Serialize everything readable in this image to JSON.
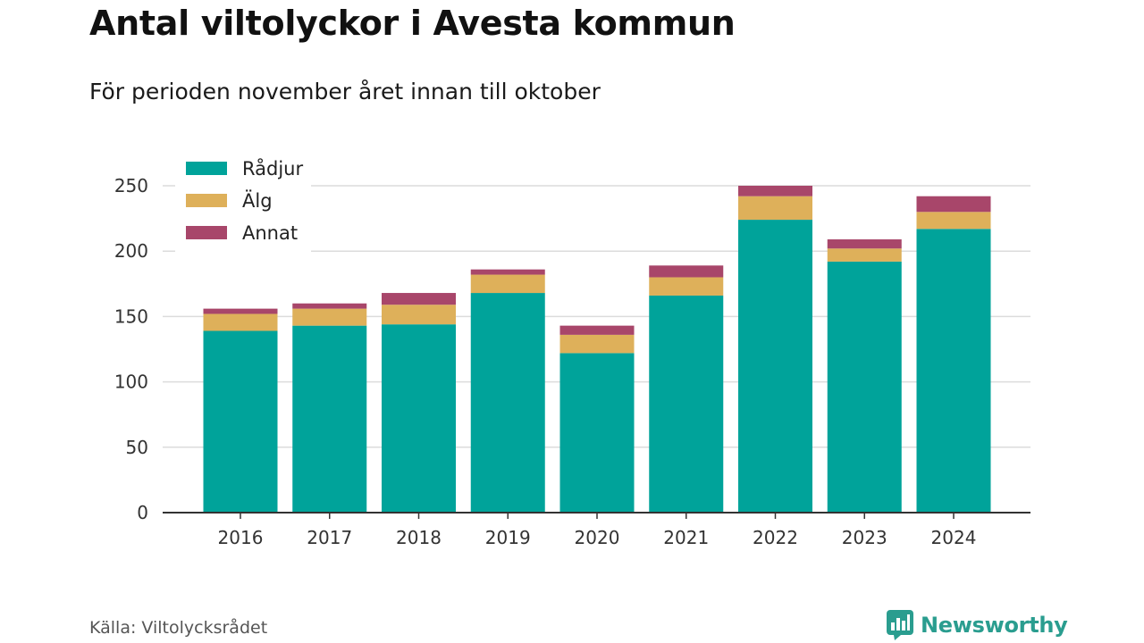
{
  "header": {
    "title": "Antal viltolyckor i Avesta kommun",
    "subtitle": "För perioden november året innan till oktober"
  },
  "footer": {
    "source": "Källa: Viltolycksrådet",
    "brand": "Newsworthy",
    "brand_icon": "bar-chart-speech-bubble-icon",
    "brand_color": "#2a9d8f"
  },
  "chart_data": {
    "type": "bar",
    "stacked": true,
    "categories": [
      "2016",
      "2017",
      "2018",
      "2019",
      "2020",
      "2021",
      "2022",
      "2023",
      "2024"
    ],
    "series": [
      {
        "name": "Rådjur",
        "color": "#00a39a",
        "values": [
          139,
          143,
          144,
          168,
          122,
          166,
          224,
          192,
          217
        ]
      },
      {
        "name": "Älg",
        "color": "#deb05a",
        "values": [
          13,
          13,
          15,
          14,
          14,
          14,
          18,
          10,
          13
        ]
      },
      {
        "name": "Annat",
        "color": "#a8466a",
        "values": [
          4,
          4,
          9,
          4,
          7,
          9,
          8,
          7,
          12
        ]
      }
    ],
    "ylim": [
      0,
      250
    ],
    "yticks": [
      0,
      50,
      100,
      150,
      200,
      250
    ],
    "grid": true,
    "legend_position": "top-left"
  }
}
